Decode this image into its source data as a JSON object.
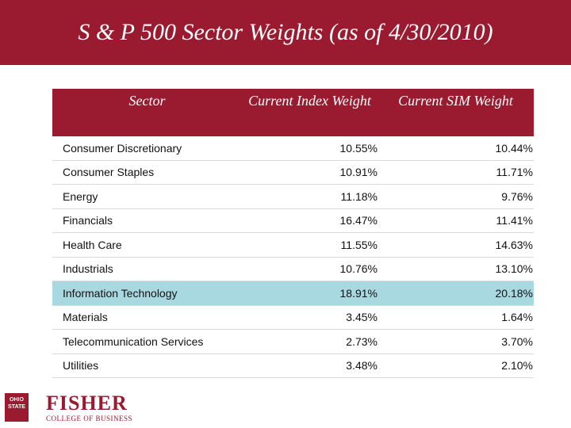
{
  "header": {
    "title": "S & P 500 Sector Weights (as of 4/30/2010)"
  },
  "table": {
    "headers": [
      "Sector",
      "Current Index Weight",
      "Current SIM Weight"
    ],
    "rows": [
      [
        "Consumer Discretionary",
        "10.55%",
        "10.44%"
      ],
      [
        "Consumer Staples",
        "10.91%",
        "11.71%"
      ],
      [
        "Energy",
        "11.18%",
        "9.76%"
      ],
      [
        "Financials",
        "16.47%",
        "11.41%"
      ],
      [
        "Health Care",
        "11.55%",
        "14.63%"
      ],
      [
        "Industrials",
        "10.76%",
        "13.10%"
      ],
      [
        "Information Technology",
        "18.91%",
        "20.18%"
      ],
      [
        "Materials",
        "3.45%",
        "1.64%"
      ],
      [
        "Telecommunication Services",
        "2.73%",
        "3.70%"
      ],
      [
        "Utilities",
        "3.48%",
        "2.10%"
      ]
    ]
  },
  "logo": {
    "seal": "OHIO STATE",
    "name": "FISHER",
    "subtitle": "COLLEGE OF BUSINESS"
  }
}
